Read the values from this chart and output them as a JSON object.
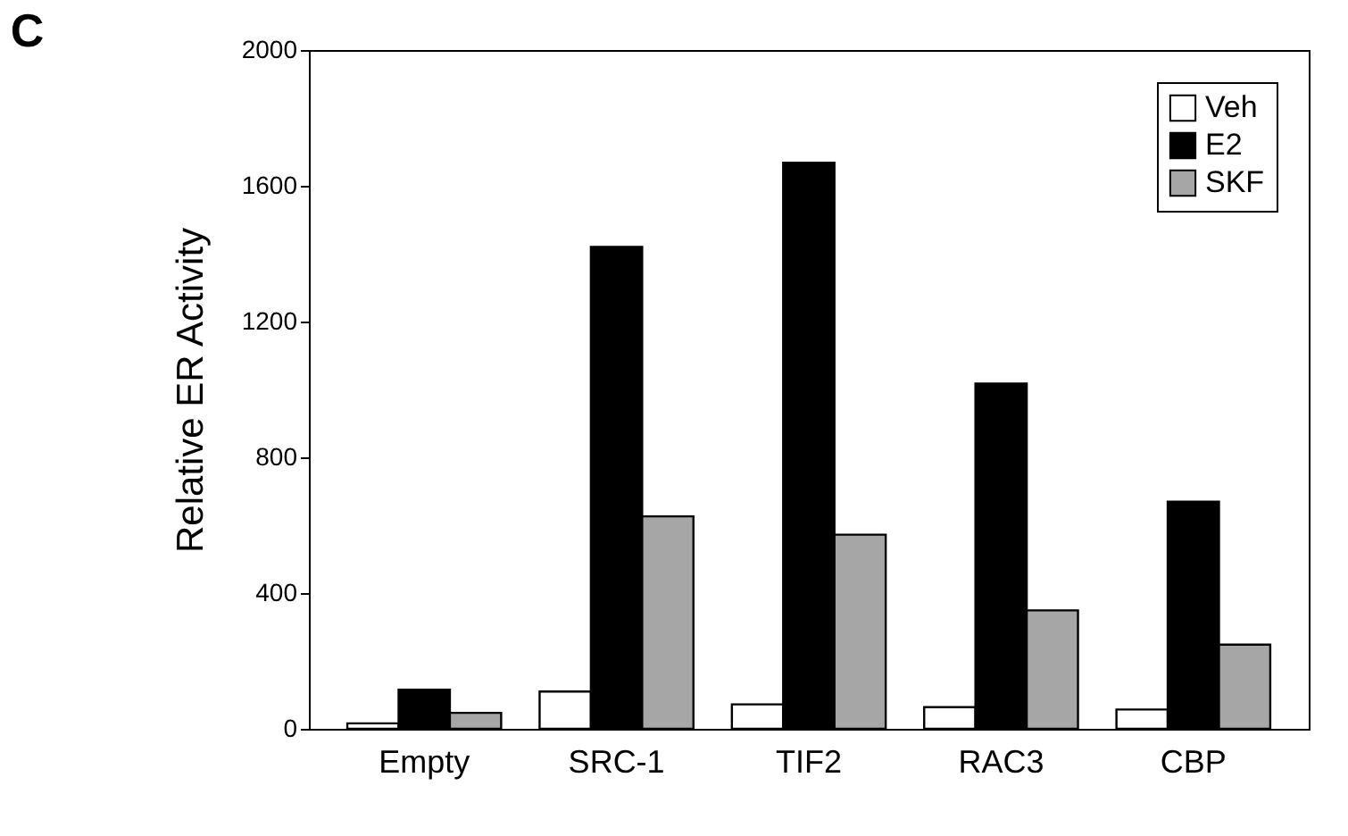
{
  "chart_data": {
    "type": "bar",
    "title": "C",
    "ylabel": "Relative ER Activity",
    "categories": [
      "Empty",
      "SRC-1",
      "TIF2",
      "RAC3",
      "CBP"
    ],
    "series": [
      {
        "name": "Veh",
        "color": "#ffffff",
        "values": [
          16,
          110,
          72,
          64,
          57
        ]
      },
      {
        "name": "E2",
        "color": "#000000",
        "values": [
          115,
          1420,
          1668,
          1017,
          669
        ]
      },
      {
        "name": "SKF",
        "color": "#a6a6a6",
        "values": [
          47,
          626,
          572,
          349,
          248
        ]
      }
    ],
    "ylim": [
      0,
      2000
    ],
    "yticks": [
      0,
      400,
      800,
      1200,
      1600,
      2000
    ],
    "grid": false,
    "legend": "top right"
  }
}
